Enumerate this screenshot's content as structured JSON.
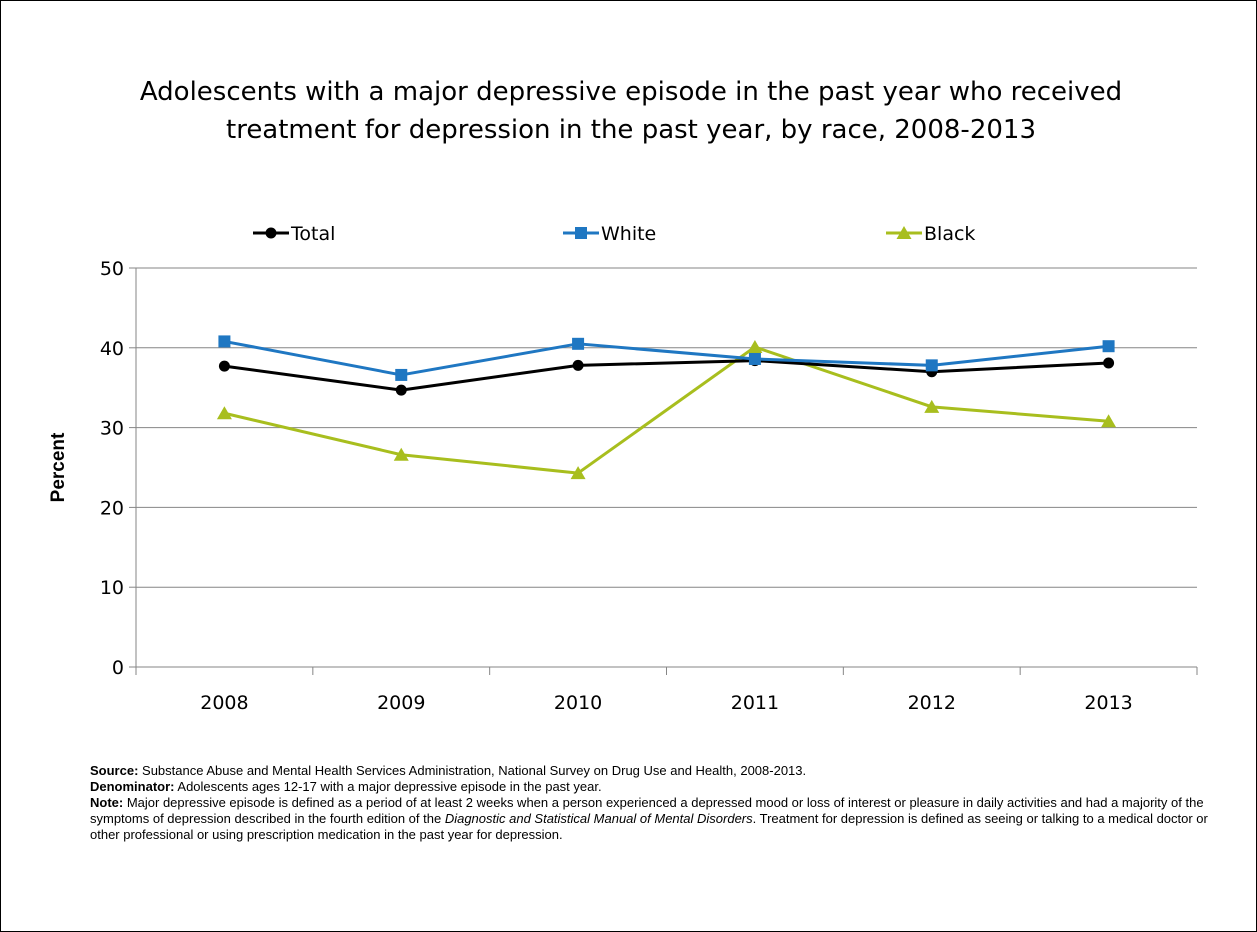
{
  "chart_data": {
    "type": "line",
    "title_lines": [
      "Adolescents with a major depressive episode in the past year who received",
      "treatment for depression in the past year, by race, 2008-2013"
    ],
    "ylabel": "Percent",
    "xlabel": "",
    "categories": [
      "2008",
      "2009",
      "2010",
      "2011",
      "2012",
      "2013"
    ],
    "ylim": [
      0,
      50
    ],
    "yticks": [
      0,
      10,
      20,
      30,
      40,
      50
    ],
    "grid": true,
    "legend": "top",
    "series": [
      {
        "name": "Total",
        "marker": "circle",
        "color": "#000000",
        "values": [
          37.7,
          34.7,
          37.8,
          38.4,
          37.0,
          38.1
        ]
      },
      {
        "name": "White",
        "marker": "square",
        "color": "#1F77C2",
        "values": [
          40.8,
          36.6,
          40.5,
          38.6,
          37.8,
          40.2
        ]
      },
      {
        "name": "Black",
        "marker": "triangle",
        "color": "#A8BE1E",
        "values": [
          31.8,
          26.6,
          24.3,
          40.1,
          32.6,
          30.8
        ]
      }
    ]
  },
  "notes": {
    "source_label": "Source:",
    "source_text": " Substance Abuse and Mental Health Services Administration, National Survey on Drug Use and Health, 2008-2013.",
    "denominator_label": "Denominator:",
    "denominator_text": " Adolescents ages 12-17 with a major depressive episode in the past year.",
    "note_label": "Note:",
    "note_text_1": " Major depressive episode is defined as a period of at least 2 weeks when a person experienced a depressed mood or loss of interest or pleasure in daily activities and had a majority of the symptoms of depression described in the fourth edition of the ",
    "note_italic": "Diagnostic and Statistical Manual of Mental Disorders",
    "note_text_2": ". Treatment for depression is defined as seeing or talking to a medical doctor or other professional or using prescription medication in the past year for depression."
  }
}
